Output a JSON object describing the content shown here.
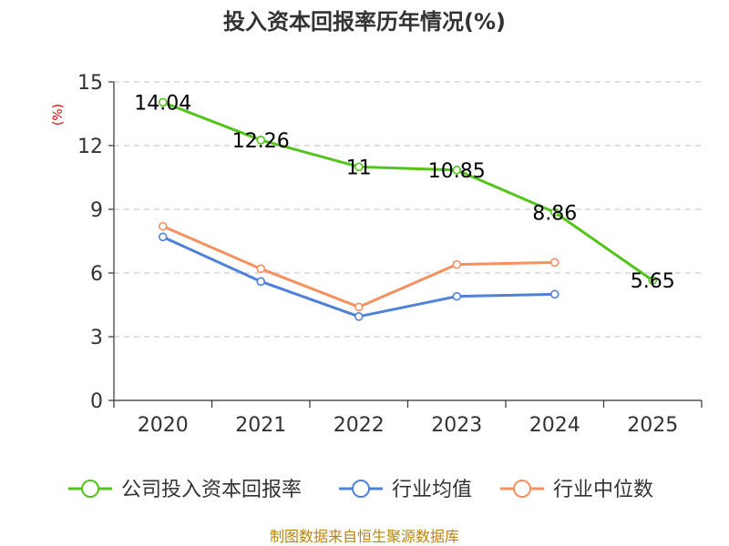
{
  "chart_data": {
    "type": "line",
    "title": "投入资本回报率历年情况(%)",
    "ylabel": "(%)",
    "xlabel": "",
    "categories": [
      "2020",
      "2021",
      "2022",
      "2023",
      "2024",
      "2025"
    ],
    "ylim": [
      0,
      15
    ],
    "yticks": [
      0,
      3,
      6,
      9,
      12,
      15
    ],
    "grid": "horizontal-dashed",
    "series": [
      {
        "name": "公司投入资本回报率",
        "color": "#52c41a",
        "values": [
          14.04,
          12.26,
          11,
          10.85,
          8.86,
          5.65
        ],
        "labels": [
          "14.04",
          "12.26",
          "11",
          "10.85",
          "8.86",
          "5.65"
        ]
      },
      {
        "name": "行业均值",
        "color": "#4f81d8",
        "values": [
          7.7,
          5.6,
          3.95,
          4.9,
          5.0,
          null
        ]
      },
      {
        "name": "行业中位数",
        "color": "#f79060",
        "values": [
          8.2,
          6.2,
          4.4,
          6.4,
          6.5,
          null
        ]
      }
    ],
    "legend_position": "bottom"
  },
  "source": "制图数据来自恒生聚源数据库"
}
